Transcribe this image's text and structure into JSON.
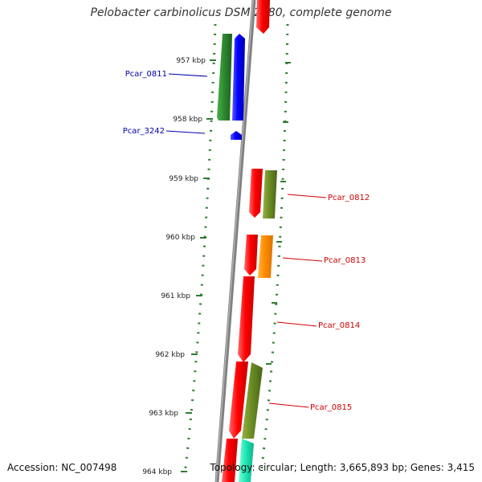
{
  "title": "Pelobacter carbinolicus DSM 2380, complete genome",
  "footer": {
    "accession": "Accession: NC_007498",
    "topology": "Topology: circular; Length: 3,665,893 bp; Genes: 3,415"
  },
  "colors": {
    "ruler_tick": "#2e7d32",
    "backbone": "#808080",
    "label_left": "#0000aa",
    "label_right": "#cc0000"
  },
  "ruler": {
    "unit": "kbp",
    "ticks": [
      "957 kbp",
      "958 kbp",
      "959 kbp",
      "960 kbp",
      "961 kbp",
      "962 kbp",
      "963 kbp",
      "964 kbp"
    ]
  },
  "gene_labels": {
    "left": [
      "Pcar_0811",
      "Pcar_3242"
    ],
    "right": [
      "Pcar_0812",
      "Pcar_0813",
      "Pcar_0814",
      "Pcar_0815"
    ]
  }
}
